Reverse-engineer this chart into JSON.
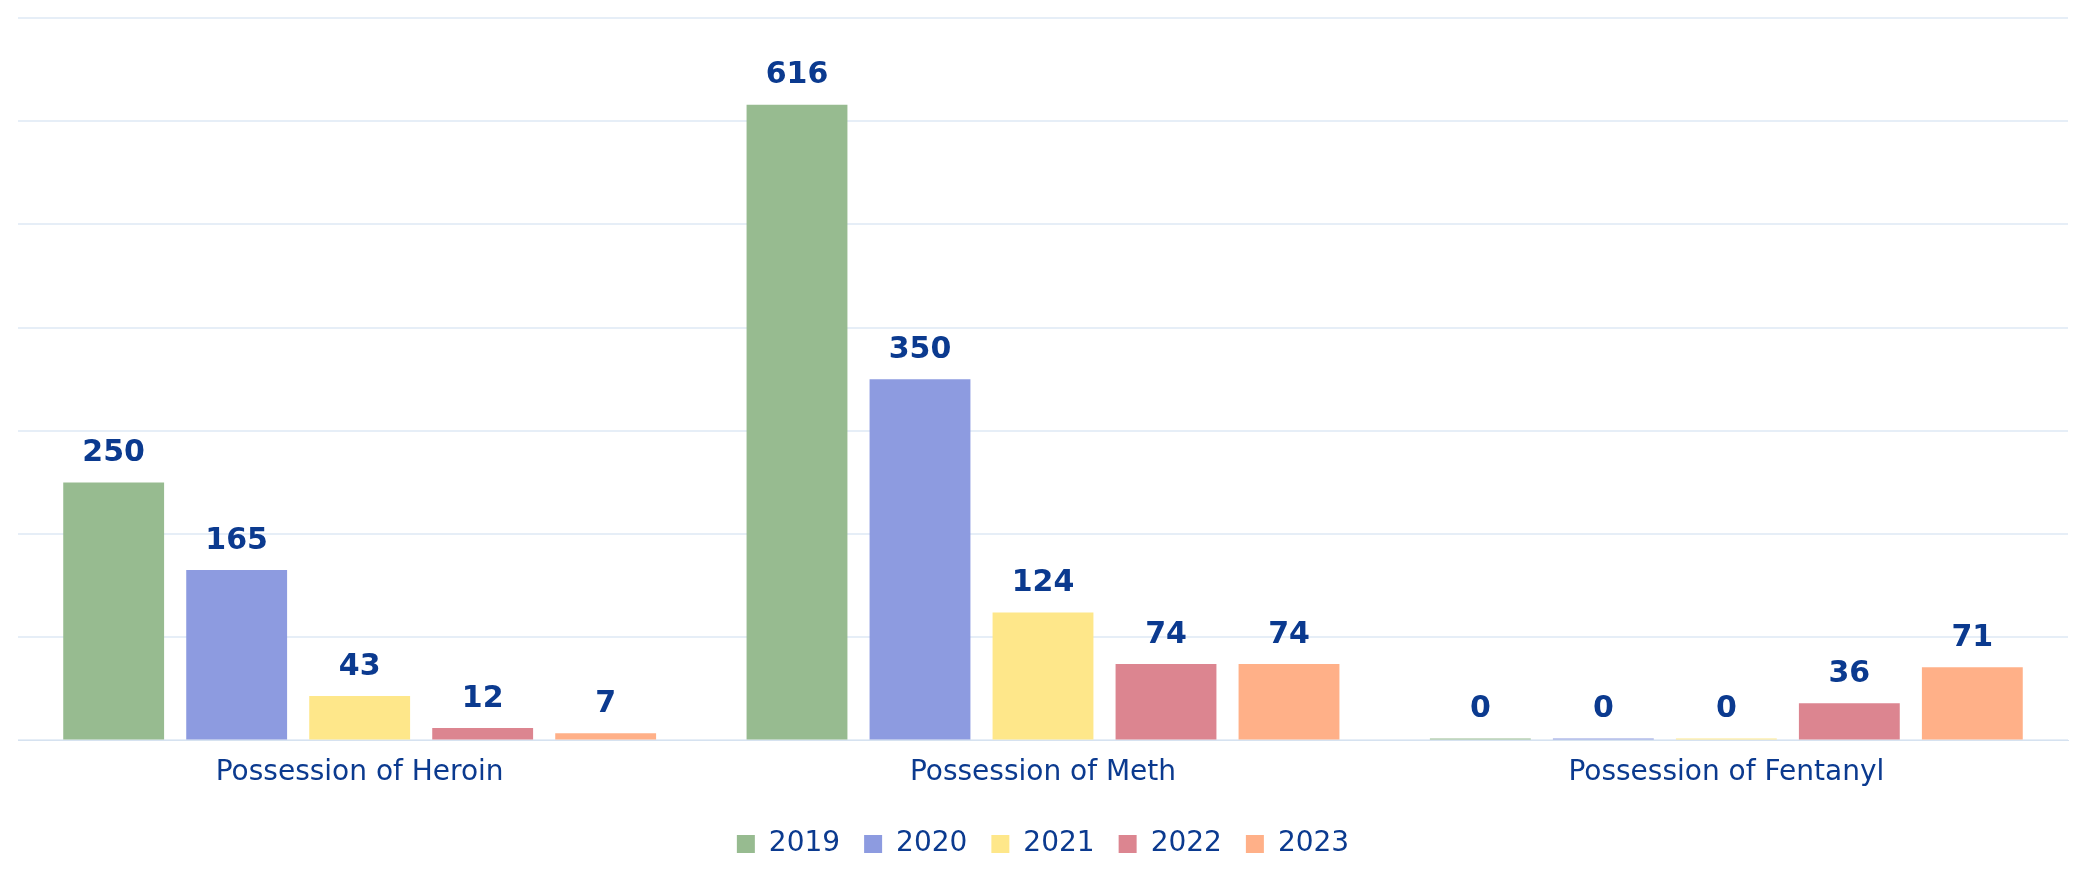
{
  "chart_data": {
    "type": "bar",
    "categories": [
      "Possession of Heroin",
      "Possession of Meth",
      "Possession of Fentanyl"
    ],
    "series": [
      {
        "name": "2019",
        "color": "#97bb90",
        "values": [
          250,
          616,
          0
        ]
      },
      {
        "name": "2020",
        "color": "#8d9be0",
        "values": [
          165,
          350,
          0
        ]
      },
      {
        "name": "2021",
        "color": "#fee78a",
        "values": [
          43,
          124,
          0
        ]
      },
      {
        "name": "2022",
        "color": "#dc8590",
        "values": [
          12,
          74,
          36
        ]
      },
      {
        "name": "2023",
        "color": "#ffb088",
        "values": [
          7,
          74,
          71
        ]
      }
    ],
    "ylim": [
      0,
      700
    ],
    "yticks": [
      {
        "value": 0,
        "label": null
      },
      {
        "value": 100,
        "label": null
      },
      {
        "value": 200,
        "label": null
      },
      {
        "value": 300,
        "label": null
      },
      {
        "value": 400,
        "label": null
      },
      {
        "value": 500,
        "label": null
      },
      {
        "value": 600,
        "label": null
      },
      {
        "value": 700,
        "label": null
      }
    ],
    "tick_labels": "x",
    "grid": "y",
    "legend": "bottom",
    "data_labels": true
  }
}
